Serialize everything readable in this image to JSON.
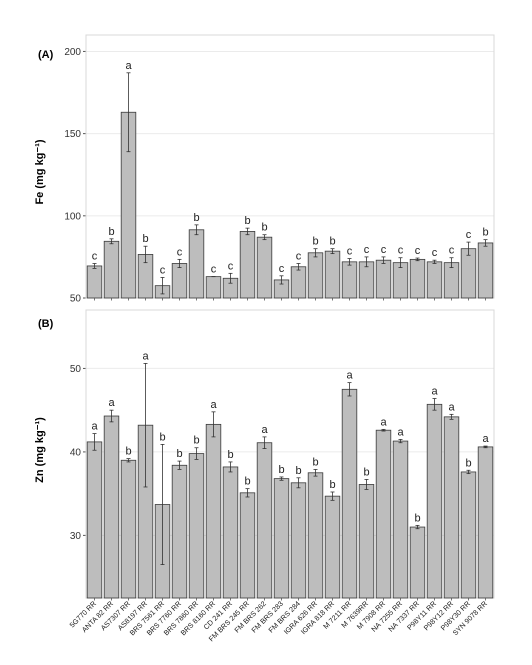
{
  "chart_data": [
    {
      "type": "bar",
      "panel": "(A)",
      "ylabel": "Fe (mg kg⁻¹)",
      "ylim": [
        50,
        210
      ],
      "yticks": [
        50,
        100,
        150,
        200
      ],
      "categories": [
        "5G770 RR",
        "ANTA 82 RR",
        "AS7307 RR",
        "AS8197 RR",
        "BRS 7561 RR",
        "BRS 7760 RR",
        "BRS 7860 RR",
        "BRS 8160 RR",
        "CD 241 RR",
        "FM BRS 245 RR",
        "FM BRS 262",
        "FM BRS 283",
        "FM BRS 284",
        "IGRA 626 RR",
        "IGRA 818 RR",
        "M 7211 RR",
        "M 7639RR",
        "M 7908 RR",
        "NA 7255 RR",
        "NA 7337 RR",
        "P98Y11 RR",
        "P98Y12 RR",
        "P98Y30 RR",
        "SYN 9078 RR"
      ],
      "values": [
        69.5,
        84.5,
        163,
        76.5,
        57.5,
        71,
        91.5,
        63,
        62,
        90.5,
        87,
        61,
        69,
        77.5,
        78.5,
        72,
        72,
        73,
        71.5,
        73.5,
        72,
        71.5,
        80,
        83.5
      ],
      "errors": [
        1.5,
        1.5,
        24,
        5,
        5,
        2.5,
        3,
        0,
        3,
        2,
        1.5,
        2.5,
        2,
        2.5,
        1.5,
        2,
        3,
        2,
        3,
        0.8,
        1,
        3,
        4,
        2
      ],
      "letters": [
        "c",
        "b",
        "a",
        "b",
        "c",
        "c",
        "b",
        "c",
        "c",
        "b",
        "b",
        "c",
        "c",
        "b",
        "b",
        "c",
        "c",
        "c",
        "c",
        "c",
        "c",
        "c",
        "c",
        "b"
      ]
    },
    {
      "type": "bar",
      "panel": "(B)",
      "ylabel": "Zn (mg kg⁻¹)",
      "ylim": [
        22.5,
        57
      ],
      "yticks": [
        30,
        40,
        50
      ],
      "categories": [
        "5G770 RR",
        "ANTA 82 RR",
        "AS7307 RR",
        "AS8197 RR",
        "BRS 7561 RR",
        "BRS 7760 RR",
        "BRS 7860 RR",
        "BRS 8160 RR",
        "CD 241 RR",
        "FM BRS 245 RR",
        "FM BRS 262",
        "FM BRS 283",
        "FM BRS 284",
        "IGRA 626 RR",
        "IGRA 818 RR",
        "M 7211 RR",
        "M 7639RR",
        "M 7908 RR",
        "NA 7255 RR",
        "NA 7337 RR",
        "P98Y11 RR",
        "P98Y12 RR",
        "P98Y30 RR",
        "SYN 9078 RR"
      ],
      "values": [
        41.2,
        44.3,
        39,
        43.2,
        33.7,
        38.4,
        39.8,
        43.3,
        38.2,
        35.1,
        41.1,
        36.8,
        36.3,
        37.5,
        34.7,
        47.5,
        36.1,
        42.6,
        41.3,
        31,
        45.7,
        44.2,
        37.6,
        40.6
      ],
      "errors": [
        1,
        0.7,
        0.2,
        7.4,
        7.2,
        0.5,
        0.7,
        1.5,
        0.6,
        0.5,
        0.7,
        0.2,
        0.6,
        0.4,
        0.5,
        0.8,
        0.6,
        0.1,
        0.2,
        0.2,
        0.7,
        0.3,
        0.2,
        0.1
      ],
      "letters": [
        "a",
        "a",
        "b",
        "a",
        "b",
        "b",
        "b",
        "a",
        "b",
        "b",
        "a",
        "b",
        "b",
        "b",
        "b",
        "a",
        "b",
        "a",
        "a",
        "b",
        "a",
        "a",
        "b",
        "a"
      ]
    }
  ]
}
